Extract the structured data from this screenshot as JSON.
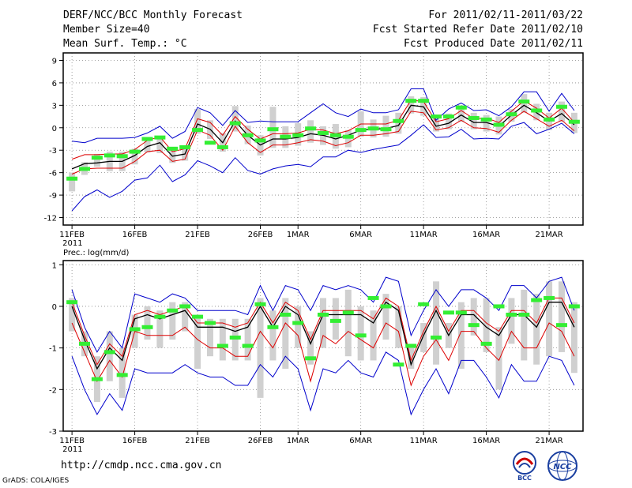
{
  "header": {
    "title": "DERF/NCC/BCC Monthly Forecast",
    "member_size": "Member Size=40",
    "var_temp": "Mean Surf. Temp.: °C",
    "for_period": "For 2011/02/11-2011/03/22",
    "started": "Fcst Started Refer Date 2011/02/10",
    "produced": "Fcst Produced Date 2011/02/11"
  },
  "footer": {
    "url": "http://cmdp.ncc.cma.gov.cn",
    "grads": "GrADS: COLA/IGES",
    "logo_left_text": "BCC",
    "logo_right_text": "NCC"
  },
  "colors": {
    "bg": "#ffffff",
    "green": "#33ee33",
    "box": "#d0d0d0",
    "blue": "#0000cc",
    "red": "#dd0000",
    "black": "#000000",
    "grid": "#888888"
  },
  "chart_data": [
    {
      "type": "line",
      "title": "Mean Surf. Temp.: °C",
      "ylim": [
        -13,
        10
      ],
      "yticks": [
        9,
        6,
        3,
        0,
        -3,
        -6,
        -9,
        -12
      ],
      "xlim": [
        0.3,
        41.7
      ],
      "xticks": [
        {
          "x": 1,
          "label": "11FEB",
          "sublabel": "2011"
        },
        {
          "x": 6,
          "label": "16FEB"
        },
        {
          "x": 11,
          "label": "21FEB"
        },
        {
          "x": 16,
          "label": "26FEB"
        },
        {
          "x": 19,
          "label": "1MAR"
        },
        {
          "x": 24,
          "label": "6MAR"
        },
        {
          "x": 29,
          "label": "11MAR"
        },
        {
          "x": 34,
          "label": "16MAR"
        },
        {
          "x": 39,
          "label": "21MAR"
        }
      ],
      "series": [
        {
          "name": "max",
          "color": "#0000cc",
          "values": [
            -1.8,
            -2,
            -1.4,
            -1.4,
            -1.4,
            -1.3,
            -0.7,
            0.2,
            -1.4,
            -0.5,
            2.7,
            2.0,
            0.3,
            2.3,
            0.7,
            0.9,
            0.8,
            0.8,
            0.8,
            2.0,
            3.2,
            2.0,
            1.5,
            2.5,
            2.0,
            2.0,
            2.4,
            5.2,
            5.2,
            1.0,
            2.5,
            3.3,
            2.3,
            2.4,
            1.6,
            2.8,
            4.8,
            4.8,
            2.2,
            4.6,
            2.3
          ]
        },
        {
          "name": "upper",
          "color": "#dd0000",
          "values": [
            -4.2,
            -3.6,
            -3.6,
            -3.5,
            -3.5,
            -2.9,
            -1.7,
            -1.2,
            -3.2,
            -2.8,
            1.2,
            0.7,
            -1.0,
            1.5,
            -0.2,
            -1.5,
            -0.8,
            -0.8,
            -0.7,
            -0.2,
            -0.3,
            -0.8,
            -0.4,
            0.5,
            0.5,
            0.5,
            1.0,
            3.7,
            3.5,
            0.8,
            1.2,
            2.3,
            1.2,
            1.3,
            0.7,
            2.2,
            3.6,
            2.6,
            1.3,
            2.6,
            0.7
          ]
        },
        {
          "name": "mean",
          "color": "#000000",
          "values": [
            -5.5,
            -4.8,
            -4.7,
            -4.5,
            -4.5,
            -3.7,
            -2.5,
            -2,
            -3.8,
            -3.5,
            0.5,
            -0.2,
            -2,
            0.9,
            -1,
            -2.3,
            -1.5,
            -1.5,
            -1.3,
            -0.8,
            -1,
            -1.5,
            -1.0,
            -0.3,
            -0.2,
            -0.1,
            0.3,
            3.0,
            2.8,
            0.2,
            0.6,
            1.7,
            0.7,
            0.7,
            0.2,
            1.7,
            3,
            2,
            0.9,
            1.9,
            0.4
          ]
        },
        {
          "name": "lower",
          "color": "#dd0000",
          "values": [
            -6.2,
            -5.5,
            -5.4,
            -5.4,
            -5.4,
            -4.5,
            -3.2,
            -3.0,
            -4.5,
            -4.2,
            -0.3,
            -1,
            -3,
            0.2,
            -2,
            -3.3,
            -2.3,
            -2.3,
            -2.0,
            -1.6,
            -1.8,
            -2.4,
            -2.0,
            -1.0,
            -1.0,
            -0.8,
            -0.5,
            2.2,
            2.0,
            -0.3,
            0,
            1,
            0,
            -0.1,
            -0.6,
            1,
            2.2,
            1.2,
            0.2,
            1,
            -0.4
          ]
        },
        {
          "name": "min",
          "color": "#0000cc",
          "values": [
            -11.1,
            -9.2,
            -8.3,
            -9.3,
            -8.5,
            -7.0,
            -6.7,
            -5.0,
            -7.2,
            -6.3,
            -4.4,
            -5.1,
            -6.0,
            -4.0,
            -5.7,
            -6.2,
            -5.5,
            -5.1,
            -4.9,
            -5.2,
            -3.9,
            -3.9,
            -3.0,
            -3.3,
            -2.9,
            -2.6,
            -2.3,
            -1.0,
            0.4,
            -1.3,
            -1.2,
            -0.2,
            -1.5,
            -1.4,
            -1.5,
            0.2,
            0.7,
            -0.8,
            -0.2,
            0.6,
            -0.8
          ]
        },
        {
          "name": "box_low",
          "color": "#d0d0d0",
          "values": [
            -8.5,
            -6.3,
            -5.2,
            -5.8,
            -5.8,
            -4.9,
            -3.3,
            -3.4,
            -4.7,
            -4.4,
            -0.8,
            -1.5,
            -3.2,
            -0.5,
            -2.2,
            -3.7,
            -2.7,
            -2.7,
            -2.4,
            -2.0,
            -2.3,
            -2.8,
            -2.6,
            -1.2,
            -1.3,
            -1.2,
            -0.8,
            1.9,
            1.6,
            -0.5,
            -0.2,
            0.8,
            -0.2,
            -0.5,
            -0.9,
            0.8,
            2.0,
            1.0,
            -0.3,
            0.8,
            -0.7
          ]
        },
        {
          "name": "box_high",
          "color": "#d0d0d0",
          "values": [
            -6.0,
            -4.6,
            -3.5,
            -3.2,
            -3.2,
            -2.8,
            -1.3,
            -1.2,
            -2.8,
            -2.5,
            2.5,
            1.0,
            -0.7,
            2.9,
            0.3,
            -1.0,
            2.8,
            0.2,
            0.6,
            1.0,
            0.2,
            0.5,
            -0.3,
            2.2,
            1.1,
            1.6,
            2.0,
            4.2,
            4.1,
            1.5,
            1.9,
            3.0,
            2.0,
            1.7,
            1.5,
            2.5,
            4.5,
            3.2,
            2.0,
            3.5,
            2.0
          ]
        },
        {
          "name": "ensemble_member",
          "color": "#33ee33",
          "values": [
            -6.8,
            -5.5,
            -4.0,
            -3.7,
            -3.8,
            -3.2,
            -1.5,
            -1.3,
            -2.8,
            -2.6,
            -0.3,
            -2.0,
            -2.6,
            0.6,
            -1.0,
            -1.7,
            -0.2,
            -1.2,
            -1.0,
            -0.1,
            -0.7,
            -1.0,
            -1.2,
            -0.3,
            -0.1,
            -0.2,
            0.9,
            3.6,
            3.6,
            1.5,
            1.5,
            2.7,
            1.3,
            1.1,
            0.4,
            1.8,
            3.5,
            2.3,
            1.1,
            2.8,
            0.8
          ]
        }
      ]
    },
    {
      "type": "line",
      "title": "Prec.: log(mm/d)",
      "ylim": [
        -3,
        1.1
      ],
      "yticks": [
        1,
        0,
        -1,
        -2,
        -3
      ],
      "xlim": [
        0.3,
        41.7
      ],
      "xticks": [
        {
          "x": 1,
          "label": "11FEB",
          "sublabel": "2011"
        },
        {
          "x": 6,
          "label": "16FEB"
        },
        {
          "x": 11,
          "label": "21FEB"
        },
        {
          "x": 16,
          "label": "26FEB"
        },
        {
          "x": 19,
          "label": "1MAR"
        },
        {
          "x": 24,
          "label": "6MAR"
        },
        {
          "x": 29,
          "label": "11MAR"
        },
        {
          "x": 34,
          "label": "16MAR"
        },
        {
          "x": 39,
          "label": "21MAR"
        }
      ],
      "series": [
        {
          "name": "max",
          "color": "#0000cc",
          "values": [
            0.4,
            -0.5,
            -1.1,
            -0.6,
            -1,
            0.3,
            0.2,
            0.1,
            0.3,
            0.2,
            -0.1,
            -0.1,
            -0.1,
            -0.1,
            -0.2,
            0.5,
            -0.1,
            0.5,
            0.4,
            -0.1,
            0.5,
            0.4,
            0.5,
            0.4,
            0.1,
            0.7,
            0.6,
            -0.7,
            -0.1,
            0.4,
            0,
            0.4,
            0.4,
            0.2,
            -0.1,
            0.5,
            0.5,
            0.2,
            0.6,
            0.7,
            -0.1
          ]
        },
        {
          "name": "upper",
          "color": "#dd0000",
          "values": [
            0.1,
            -0.7,
            -1.4,
            -0.9,
            -1.2,
            -0.2,
            -0.1,
            -0.2,
            -0.1,
            0,
            -0.4,
            -0.4,
            -0.4,
            -0.5,
            -0.4,
            0.1,
            -0.4,
            0.1,
            -0.1,
            -0.8,
            -0.1,
            -0.1,
            -0.1,
            -0.1,
            -0.3,
            0.2,
            0,
            -1.3,
            -0.6,
            0,
            -0.6,
            -0.1,
            -0.1,
            -0.4,
            -0.6,
            -0.1,
            -0.1,
            -0.4,
            0.2,
            0.2,
            -0.4
          ]
        },
        {
          "name": "mean",
          "color": "#000000",
          "values": [
            0,
            -0.8,
            -1.5,
            -1.0,
            -1.3,
            -0.3,
            -0.2,
            -0.3,
            -0.2,
            -0.1,
            -0.5,
            -0.5,
            -0.5,
            -0.6,
            -0.5,
            0,
            -0.5,
            0,
            -0.2,
            -0.9,
            -0.2,
            -0.2,
            -0.2,
            -0.2,
            -0.4,
            0.1,
            -0.1,
            -1.4,
            -0.7,
            -0.1,
            -0.7,
            -0.2,
            -0.2,
            -0.5,
            -0.7,
            -0.2,
            -0.2,
            -0.5,
            0.1,
            0.1,
            -0.5
          ]
        },
        {
          "name": "lower",
          "color": "#dd0000",
          "values": [
            -0.4,
            -1.1,
            -1.8,
            -1.3,
            -1.7,
            -0.6,
            -0.7,
            -0.7,
            -0.7,
            -0.5,
            -0.8,
            -1,
            -1,
            -1.2,
            -1.2,
            -0.6,
            -1,
            -0.4,
            -0.7,
            -1.8,
            -0.7,
            -0.9,
            -0.6,
            -0.8,
            -1,
            -0.4,
            -0.6,
            -1.9,
            -1.2,
            -0.8,
            -1.3,
            -0.6,
            -0.6,
            -1,
            -1.3,
            -0.6,
            -1,
            -1,
            -0.4,
            -0.6,
            -1.2
          ]
        },
        {
          "name": "min",
          "color": "#0000cc",
          "values": [
            -1.2,
            -2,
            -2.6,
            -2.1,
            -2.5,
            -1.5,
            -1.6,
            -1.6,
            -1.6,
            -1.4,
            -1.6,
            -1.7,
            -1.7,
            -1.9,
            -1.9,
            -1.4,
            -1.7,
            -1.2,
            -1.5,
            -2.5,
            -1.5,
            -1.6,
            -1.3,
            -1.6,
            -1.7,
            -1.1,
            -1.3,
            -2.6,
            -2.0,
            -1.5,
            -2.1,
            -1.3,
            -1.3,
            -1.7,
            -2.2,
            -1.4,
            -1.8,
            -1.8,
            -1.2,
            -1.3,
            -1.9
          ]
        },
        {
          "name": "box_low",
          "color": "#d0d0d0",
          "values": [
            -0.6,
            -1.2,
            -2.3,
            -1.8,
            -2.2,
            -1.0,
            -0.8,
            -1,
            -0.8,
            -0.6,
            -1.5,
            -1.2,
            -1.3,
            -1.3,
            -1.3,
            -2.2,
            -1.3,
            -1.5,
            -1.0,
            -1.4,
            -1.0,
            -0.8,
            -1.2,
            -1.3,
            -1.3,
            -0.8,
            -1.0,
            -1.5,
            -1.1,
            -1.4,
            -1.0,
            -1.5,
            -0.7,
            -1.1,
            -2.0,
            -0.9,
            -1.3,
            -1.4,
            -1.2,
            -1.1,
            -1.6
          ]
        },
        {
          "name": "box_high",
          "color": "#d0d0d0",
          "values": [
            0.2,
            -0.6,
            -1.2,
            -0.6,
            -1.0,
            -0.2,
            0.0,
            -0.1,
            0.1,
            0.1,
            -0.3,
            -0.3,
            -0.3,
            -0.3,
            -0.3,
            0.2,
            -0.1,
            0.2,
            0.0,
            -0.6,
            0.2,
            0.2,
            0.4,
            0.0,
            -0.1,
            0.3,
            0.0,
            -0.9,
            -0.4,
            0.6,
            -0.4,
            0.1,
            0.2,
            0.2,
            -0.5,
            0.2,
            0.4,
            0.3,
            0.6,
            0.6,
            0.1
          ]
        },
        {
          "name": "ensemble_member",
          "color": "#33ee33",
          "values": [
            0.1,
            -0.9,
            -1.75,
            -1.1,
            -1.65,
            -0.55,
            -0.5,
            -0.25,
            -0.1,
            0.0,
            -0.25,
            -0.4,
            -0.95,
            -0.75,
            -0.95,
            0.05,
            -0.5,
            -0.2,
            -0.4,
            -1.25,
            -0.2,
            -0.35,
            -0.15,
            -0.7,
            0.2,
            0.0,
            -1.4,
            -0.95,
            0.05,
            -0.75,
            -0.15,
            -0.15,
            -0.45,
            -0.9,
            0.0,
            -0.2,
            -0.2,
            0.15,
            0.2,
            -0.45,
            0.0
          ]
        }
      ]
    }
  ]
}
